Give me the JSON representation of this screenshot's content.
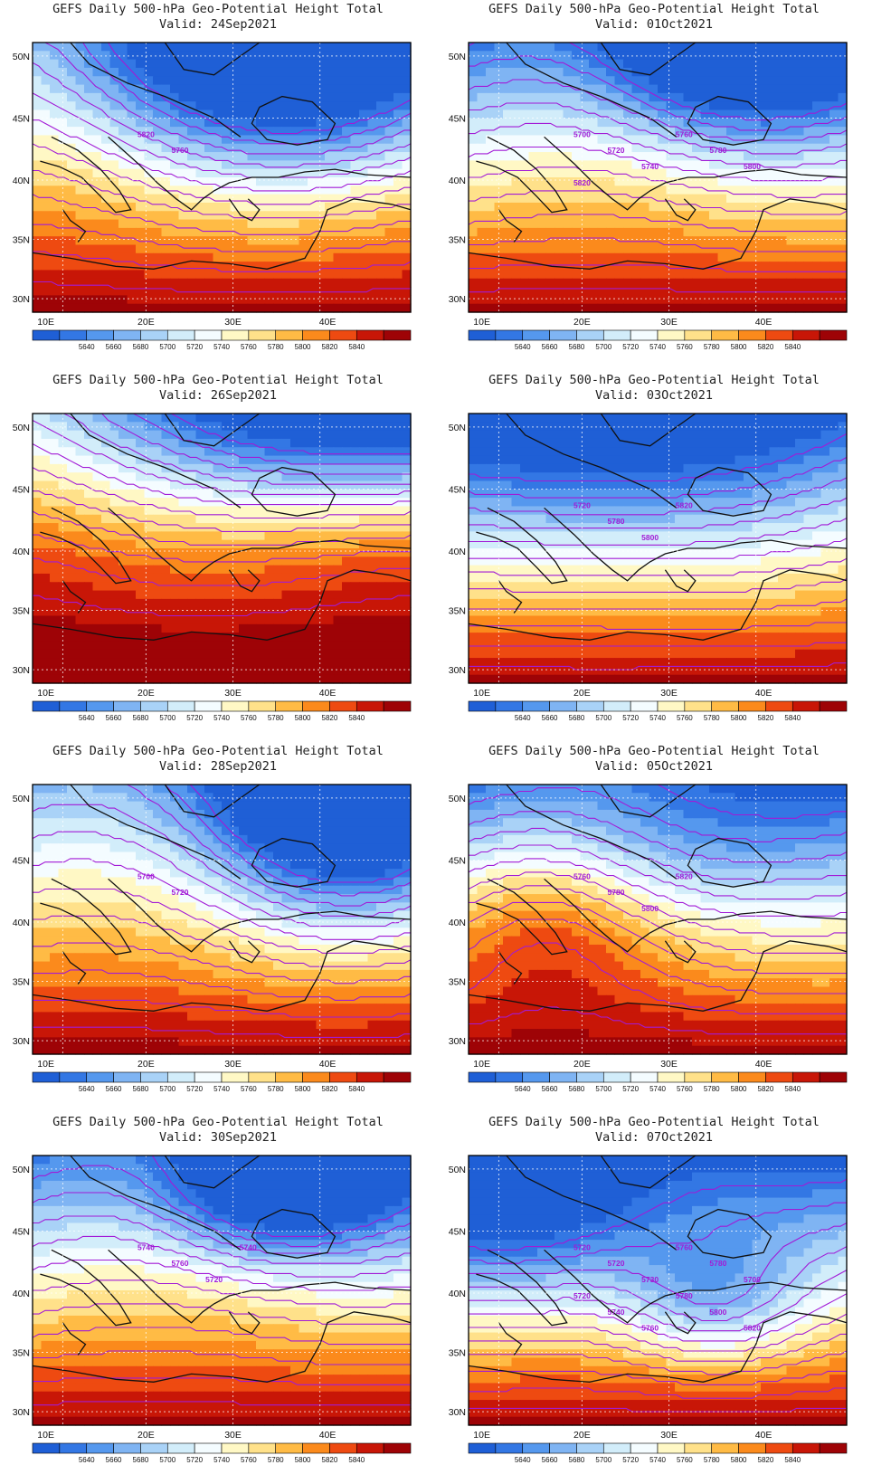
{
  "title_prefix": "GEFS Daily 500-hPa Geo-Potential Height Total",
  "colorbar": {
    "colors": [
      "#1f5fd6",
      "#3377e4",
      "#5598ee",
      "#7fb4f3",
      "#a9d2f7",
      "#d2edfa",
      "#f4fcff",
      "#fff8c5",
      "#ffe18a",
      "#ffbb45",
      "#fb8a1c",
      "#ee4a11",
      "#c81607",
      "#9e0306"
    ],
    "labels": [
      "5640",
      "5660",
      "5680",
      "5700",
      "5720",
      "5740",
      "5760",
      "5780",
      "5800",
      "5820",
      "5840"
    ]
  },
  "axes": {
    "lat_labels": [
      "50N",
      "45N",
      "40N",
      "35N",
      "30N"
    ],
    "lon_labels": [
      "10E",
      "20E",
      "30E",
      "40E"
    ]
  },
  "contour_labels_note": "",
  "panels": [
    {
      "id": "p1",
      "valid": "Valid: 24Sep2021",
      "contour_labels": [
        "5820",
        "5760"
      ]
    },
    {
      "id": "p2",
      "valid": "Valid: 01Oct2021",
      "contour_labels": [
        "5700",
        "5720",
        "5740",
        "5760",
        "5780",
        "5800",
        "5820"
      ]
    },
    {
      "id": "p3",
      "valid": "Valid: 26Sep2021",
      "contour_labels": []
    },
    {
      "id": "p4",
      "valid": "Valid: 03Oct2021",
      "contour_labels": [
        "5720",
        "5780",
        "5800",
        "5820"
      ]
    },
    {
      "id": "p5",
      "valid": "Valid: 28Sep2021",
      "contour_labels": [
        "5700",
        "5720"
      ]
    },
    {
      "id": "p6",
      "valid": "Valid: 05Oct2021",
      "contour_labels": [
        "5760",
        "5780",
        "5800",
        "5820"
      ]
    },
    {
      "id": "p7",
      "valid": "Valid: 30Sep2021",
      "contour_labels": [
        "5740",
        "5760",
        "5720",
        "5740"
      ]
    },
    {
      "id": "p8",
      "valid": "Valid: 07Oct2021",
      "contour_labels": [
        "5720",
        "5720",
        "5730",
        "5760",
        "5780",
        "5700",
        "5720",
        "5740",
        "5760",
        "5780",
        "5800",
        "5820"
      ]
    }
  ]
}
